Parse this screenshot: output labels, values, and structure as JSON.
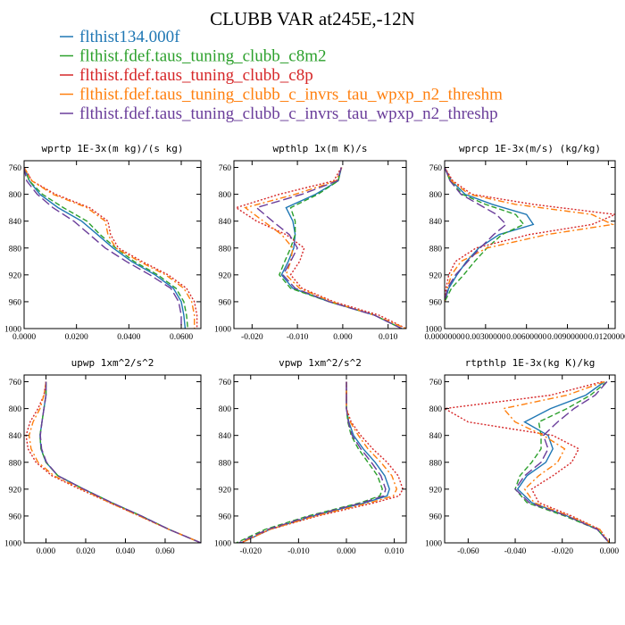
{
  "title": "CLUBB VAR at245E,-12N",
  "legend": [
    {
      "label": "flthist134.000f",
      "color": "#1f77b4",
      "dash": "solid"
    },
    {
      "label": "flthist.fdef.taus_tuning_clubb_c8m2",
      "color": "#2ca02c",
      "dash": "dash"
    },
    {
      "label": "flthist.fdef.taus_tuning_clubb_c8p",
      "color": "#d62728",
      "dash": "dot"
    },
    {
      "label": "flthist.fdef.taus_tuning_clubb_c_invrs_tau_wpxp_n2_threshm",
      "color": "#ff7f0e",
      "dash": "dashdot"
    },
    {
      "label": "flthist.fdef.taus_tuning_clubb_c_invrs_tau_wpxp_n2_threshp",
      "color": "#6a3d9a",
      "dash": "longdash"
    }
  ],
  "chart_data": [
    {
      "type": "line",
      "title": "wprtp  1E-3x(m kg)/(s kg)",
      "xlim": [
        0.0,
        0.0675
      ],
      "xticks": [
        0.0,
        0.02,
        0.04,
        0.06
      ],
      "xticklabels": [
        "0.0000",
        "0.0200",
        "0.0400",
        "0.0600"
      ],
      "ylim": [
        1000,
        750
      ],
      "yticks": [
        760,
        800,
        840,
        880,
        920,
        960,
        1000
      ],
      "y": [
        760,
        780,
        800,
        820,
        840,
        860,
        880,
        900,
        920,
        940,
        960,
        980,
        1000
      ],
      "series": [
        {
          "values": [
            0.0,
            0.002,
            0.006,
            0.013,
            0.022,
            0.028,
            0.034,
            0.041,
            0.05,
            0.057,
            0.06,
            0.061,
            0.0615
          ]
        },
        {
          "values": [
            0.0,
            0.002,
            0.007,
            0.015,
            0.024,
            0.029,
            0.035,
            0.042,
            0.051,
            0.058,
            0.061,
            0.062,
            0.0625
          ]
        },
        {
          "values": [
            0.0,
            0.003,
            0.012,
            0.025,
            0.032,
            0.033,
            0.036,
            0.045,
            0.055,
            0.062,
            0.065,
            0.066,
            0.066
          ]
        },
        {
          "values": [
            0.0,
            0.003,
            0.011,
            0.024,
            0.031,
            0.032,
            0.035,
            0.044,
            0.054,
            0.061,
            0.064,
            0.065,
            0.065
          ]
        },
        {
          "values": [
            0.0,
            0.001,
            0.005,
            0.011,
            0.019,
            0.025,
            0.031,
            0.039,
            0.048,
            0.056,
            0.059,
            0.06,
            0.06
          ]
        }
      ]
    },
    {
      "type": "line",
      "title": "wpthlp  1x(m K)/s",
      "xlim": [
        -0.024,
        0.014
      ],
      "xticks": [
        -0.02,
        -0.01,
        0.0,
        0.01
      ],
      "xticklabels": [
        "-0.020",
        "-0.010",
        "0.000",
        "0.010"
      ],
      "ylim": [
        1000,
        750
      ],
      "yticks": [
        760,
        800,
        840,
        880,
        920,
        960,
        1000
      ],
      "y": [
        760,
        780,
        800,
        820,
        840,
        860,
        880,
        900,
        920,
        940,
        960,
        980,
        1000
      ],
      "series": [
        {
          "values": [
            -0.0003,
            -0.001,
            -0.006,
            -0.0125,
            -0.011,
            -0.0105,
            -0.0108,
            -0.012,
            -0.0135,
            -0.011,
            -0.003,
            0.007,
            0.013
          ]
        },
        {
          "values": [
            -0.0003,
            -0.001,
            -0.0055,
            -0.0115,
            -0.0105,
            -0.0105,
            -0.0115,
            -0.0128,
            -0.014,
            -0.0115,
            -0.003,
            0.007,
            0.013
          ]
        },
        {
          "values": [
            -0.0003,
            -0.002,
            -0.014,
            -0.0235,
            -0.019,
            -0.0125,
            -0.0085,
            -0.0095,
            -0.0115,
            -0.009,
            -0.002,
            0.008,
            0.014
          ]
        },
        {
          "values": [
            -0.0002,
            -0.0015,
            -0.0105,
            -0.0215,
            -0.0175,
            -0.0135,
            -0.011,
            -0.0115,
            -0.0125,
            -0.0095,
            -0.0025,
            0.007,
            0.014
          ]
        },
        {
          "values": [
            -0.0003,
            -0.0012,
            -0.009,
            -0.019,
            -0.0155,
            -0.0118,
            -0.01,
            -0.0115,
            -0.0132,
            -0.0105,
            -0.003,
            0.007,
            0.013
          ]
        }
      ]
    },
    {
      "type": "line",
      "title": "wprcp  1E-3x(m/s) (kg/kg)",
      "xlim": [
        0.0,
        0.0125
      ],
      "xticks": [
        0.0,
        0.003,
        0.006,
        0.009,
        0.012
      ],
      "xticklabels": [
        "0.00000000",
        "0.00300000",
        "0.00600000",
        "0.00900000",
        "0.01200000"
      ],
      "ylim": [
        1000,
        750
      ],
      "yticks": [
        760,
        800,
        840,
        880,
        920,
        960,
        1000
      ],
      "y": [
        760,
        780,
        800,
        815,
        830,
        845,
        860,
        880,
        900,
        920,
        940,
        960
      ],
      "series": [
        {
          "values": [
            0.0,
            0.0005,
            0.0015,
            0.0035,
            0.006,
            0.0065,
            0.004,
            0.0025,
            0.0016,
            0.0009,
            0.0003,
            0.0
          ]
        },
        {
          "values": [
            0.0,
            0.0004,
            0.0013,
            0.003,
            0.0052,
            0.0058,
            0.0042,
            0.0031,
            0.0022,
            0.0014,
            0.0005,
            0.0
          ]
        },
        {
          "values": [
            0.0,
            0.0006,
            0.002,
            0.0065,
            0.0125,
            0.0108,
            0.0062,
            0.0023,
            0.0008,
            0.0003,
            0.0001,
            0.0
          ]
        },
        {
          "values": [
            0.0,
            0.0005,
            0.0018,
            0.0052,
            0.0108,
            0.0123,
            0.0075,
            0.0031,
            0.0012,
            0.0005,
            0.0002,
            0.0
          ]
        },
        {
          "values": [
            0.0,
            0.0004,
            0.0012,
            0.0025,
            0.0038,
            0.0045,
            0.0036,
            0.0026,
            0.0017,
            0.0008,
            0.0002,
            0.0
          ]
        }
      ]
    },
    {
      "type": "line",
      "title": "upwp  1xm^2/s^2",
      "xlim": [
        -0.011,
        0.078
      ],
      "xticks": [
        0.0,
        0.02,
        0.04,
        0.06
      ],
      "xticklabels": [
        "0.000",
        "0.020",
        "0.040",
        "0.060"
      ],
      "ylim": [
        1000,
        750
      ],
      "yticks": [
        760,
        800,
        840,
        880,
        920,
        960,
        1000
      ],
      "y": [
        760,
        780,
        800,
        820,
        840,
        860,
        880,
        900,
        920,
        940,
        960,
        980,
        1000
      ],
      "series": [
        {
          "values": [
            0.0,
            0.0,
            -0.001,
            -0.002,
            -0.003,
            -0.0025,
            0.0,
            0.006,
            0.019,
            0.033,
            0.048,
            0.062,
            0.078
          ]
        },
        {
          "values": [
            0.0,
            0.0,
            -0.001,
            -0.002,
            -0.003,
            -0.0025,
            0.0,
            0.006,
            0.019,
            0.033,
            0.048,
            0.062,
            0.078
          ]
        },
        {
          "values": [
            0.0,
            -0.001,
            -0.004,
            -0.008,
            -0.01,
            -0.009,
            -0.005,
            0.003,
            0.017,
            0.032,
            0.047,
            0.062,
            0.078
          ]
        },
        {
          "values": [
            0.0,
            -0.001,
            -0.003,
            -0.0065,
            -0.0085,
            -0.0075,
            -0.004,
            0.004,
            0.018,
            0.032,
            0.047,
            0.062,
            0.078
          ]
        },
        {
          "values": [
            0.0,
            0.0,
            -0.001,
            -0.002,
            -0.0028,
            -0.0022,
            0.0003,
            0.006,
            0.019,
            0.033,
            0.048,
            0.062,
            0.078
          ]
        }
      ]
    },
    {
      "type": "line",
      "title": "vpwp  1xm^2/s^2",
      "xlim": [
        -0.0235,
        0.0125
      ],
      "xticks": [
        -0.02,
        -0.01,
        0.0,
        0.01
      ],
      "xticklabels": [
        "-0.020",
        "-0.010",
        "0.000",
        "0.010"
      ],
      "ylim": [
        1000,
        750
      ],
      "yticks": [
        760,
        800,
        840,
        880,
        920,
        960,
        1000
      ],
      "y": [
        760,
        800,
        820,
        840,
        860,
        880,
        900,
        920,
        930,
        940,
        960,
        980,
        1000
      ],
      "series": [
        {
          "values": [
            0.0,
            0.0,
            0.0005,
            0.0015,
            0.0035,
            0.006,
            0.008,
            0.009,
            0.0085,
            0.004,
            -0.007,
            -0.016,
            -0.022
          ]
        },
        {
          "values": [
            0.0,
            0.0,
            0.0003,
            0.001,
            0.0025,
            0.0045,
            0.0065,
            0.0075,
            0.007,
            0.003,
            -0.008,
            -0.017,
            -0.023
          ]
        },
        {
          "values": [
            0.0,
            0.0,
            0.001,
            0.003,
            0.0055,
            0.0085,
            0.0108,
            0.0118,
            0.011,
            0.006,
            -0.006,
            -0.016,
            -0.022
          ]
        },
        {
          "values": [
            0.0,
            0.0,
            0.0008,
            0.0025,
            0.0045,
            0.0072,
            0.0095,
            0.0105,
            0.0098,
            0.005,
            -0.0065,
            -0.016,
            -0.022
          ]
        },
        {
          "values": [
            0.0,
            0.0,
            0.0004,
            0.0012,
            0.003,
            0.0052,
            0.0072,
            0.0082,
            0.0078,
            0.0035,
            -0.0075,
            -0.0165,
            -0.0225
          ]
        }
      ]
    },
    {
      "type": "line",
      "title": "rtpthlp  1E-3x(kg K)/kg",
      "xlim": [
        -0.07,
        0.0025
      ],
      "xticks": [
        -0.06,
        -0.04,
        -0.02,
        0.0
      ],
      "xticklabels": [
        "-0.060",
        "-0.040",
        "-0.020",
        "0.000"
      ],
      "ylim": [
        1000,
        750
      ],
      "yticks": [
        760,
        800,
        840,
        880,
        920,
        960,
        1000
      ],
      "y": [
        760,
        780,
        800,
        820,
        840,
        860,
        880,
        900,
        920,
        940,
        960,
        980,
        1000
      ],
      "series": [
        {
          "values": [
            -0.002,
            -0.01,
            -0.025,
            -0.036,
            -0.026,
            -0.024,
            -0.027,
            -0.035,
            -0.039,
            -0.033,
            -0.018,
            -0.005,
            0.0
          ]
        },
        {
          "values": [
            -0.001,
            -0.008,
            -0.018,
            -0.03,
            -0.029,
            -0.029,
            -0.033,
            -0.038,
            -0.04,
            -0.035,
            -0.019,
            -0.005,
            0.0
          ]
        },
        {
          "values": [
            -0.003,
            -0.025,
            -0.07,
            -0.06,
            -0.024,
            -0.013,
            -0.016,
            -0.024,
            -0.033,
            -0.03,
            -0.016,
            -0.004,
            0.0
          ]
        },
        {
          "values": [
            -0.002,
            -0.018,
            -0.045,
            -0.04,
            -0.028,
            -0.019,
            -0.022,
            -0.03,
            -0.036,
            -0.032,
            -0.017,
            -0.004,
            0.0
          ]
        },
        {
          "values": [
            -0.001,
            -0.006,
            -0.015,
            -0.022,
            -0.028,
            -0.026,
            -0.029,
            -0.036,
            -0.04,
            -0.034,
            -0.018,
            -0.005,
            0.0
          ]
        }
      ]
    }
  ]
}
